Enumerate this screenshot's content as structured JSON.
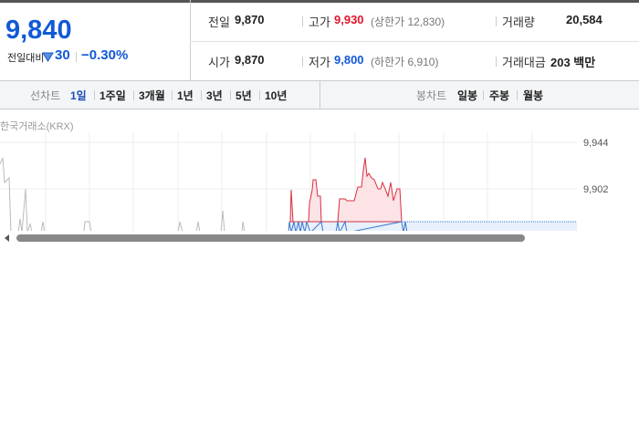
{
  "quote": {
    "price": "9,840",
    "change_label": "전일대비",
    "change": "30",
    "change_rate": "−0.30%"
  },
  "stats": [
    {
      "label": "전일",
      "value": "9,870"
    },
    {
      "label": "고가",
      "value": "9,930",
      "note": "(상한가 12,830)"
    },
    {
      "label": "거래량",
      "value": "20,584"
    },
    {
      "label": "시가",
      "value": "9,870"
    },
    {
      "label": "저가",
      "value": "9,800",
      "note": "(하한가 6,910)"
    },
    {
      "label": "거래대금",
      "value": "203 백만"
    }
  ],
  "toolbar": {
    "line_label": "선차트",
    "line_periods": [
      "1일",
      "1주일",
      "3개월",
      "1년",
      "3년",
      "5년",
      "10년"
    ],
    "candle_label": "봉차트",
    "candle_periods": [
      "일봉",
      "주봉",
      "월봉"
    ]
  },
  "chart": {
    "source": "한국거래소(KRX)",
    "axis_labels": [
      "9,944",
      "9,902"
    ]
  }
}
